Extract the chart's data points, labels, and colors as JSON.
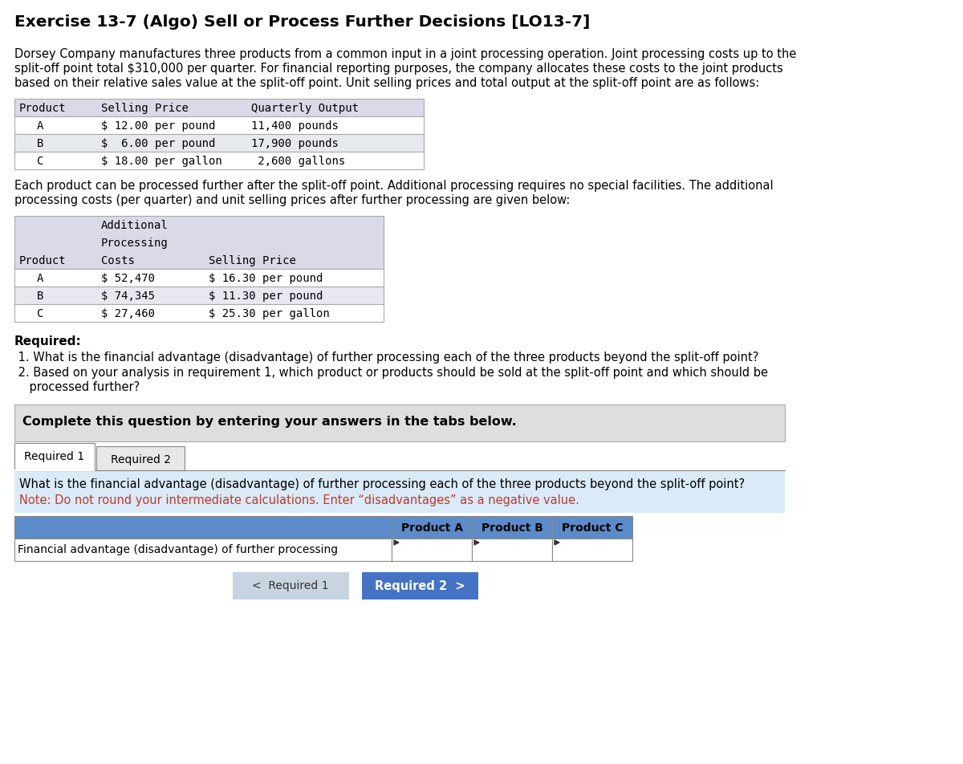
{
  "title": "Exercise 13-7 (Algo) Sell or Process Further Decisions [LO13-7]",
  "body_text_lines": [
    "Dorsey Company manufactures three products from a common input in a joint processing operation. Joint processing costs up to the",
    "split-off point total $310,000 per quarter. For financial reporting purposes, the company allocates these costs to the joint products",
    "based on their relative sales value at the split-off point. Unit selling prices and total output at the split-off point are as follows:"
  ],
  "table1_header": [
    "Product",
    "Selling Price",
    "Quarterly Output"
  ],
  "table1_rows": [
    [
      "A",
      "$ 12.00 per pound",
      "11,400 pounds"
    ],
    [
      "B",
      "$  6.00 per pound",
      "17,900 pounds"
    ],
    [
      "C",
      "$ 18.00 per gallon",
      " 2,600 gallons"
    ]
  ],
  "middle_text_lines": [
    "Each product can be processed further after the split-off point. Additional processing requires no special facilities. The additional",
    "processing costs (per quarter) and unit selling prices after further processing are given below:"
  ],
  "table2_header_line1": "Additional",
  "table2_header_line2": "Processing",
  "table2_header_line3": "Costs",
  "table2_col3_header": "Selling Price",
  "table2_rows": [
    [
      "A",
      "$ 52,470",
      "$ 16.30 per pound"
    ],
    [
      "B",
      "$ 74,345",
      "$ 11.30 per pound"
    ],
    [
      "C",
      "$ 27,460",
      "$ 25.30 per gallon"
    ]
  ],
  "required_label": "Required:",
  "req_item1": " 1. What is the financial advantage (disadvantage) of further processing each of the three products beyond the split-off point?",
  "req_item2a": " 2. Based on your analysis in requirement 1, which product or products should be sold at the split-off point and which should be",
  "req_item2b": "    processed further?",
  "complete_text": "Complete this question by entering your answers in the tabs below.",
  "tab1_label": "Required 1",
  "tab2_label": "Required 2",
  "question_text": "What is the financial advantage (disadvantage) of further processing each of the three products beyond the split-off point?",
  "note_text": "Note: Do not round your intermediate calculations. Enter “disadvantages” as a negative value.",
  "answer_row_label": "Financial advantage (disadvantage) of further processing",
  "col_headers": [
    "Product A",
    "Product B",
    "Product C"
  ],
  "btn1_label": "<  Required 1",
  "btn2_label": "Required 2  >",
  "bg_white": "#ffffff",
  "bg_table_header": "#d9d9e8",
  "bg_table_stripe": "#e8e8f0",
  "bg_gray_box": "#dedede",
  "bg_light_blue": "#daeaf7",
  "bg_blue_header": "#5b8bc9",
  "bg_blue_btn": "#4472c4",
  "bg_gray_btn": "#c8d4e0",
  "tab_active_color": "#ffffff",
  "tab_inactive_color": "#e8e8e8",
  "border_color": "#aaaaaa",
  "border_dark": "#888888",
  "red_text": "#c0392b",
  "black_text": "#000000",
  "mono_font": "DejaVu Sans Mono",
  "sans_font": "DejaVu Sans"
}
